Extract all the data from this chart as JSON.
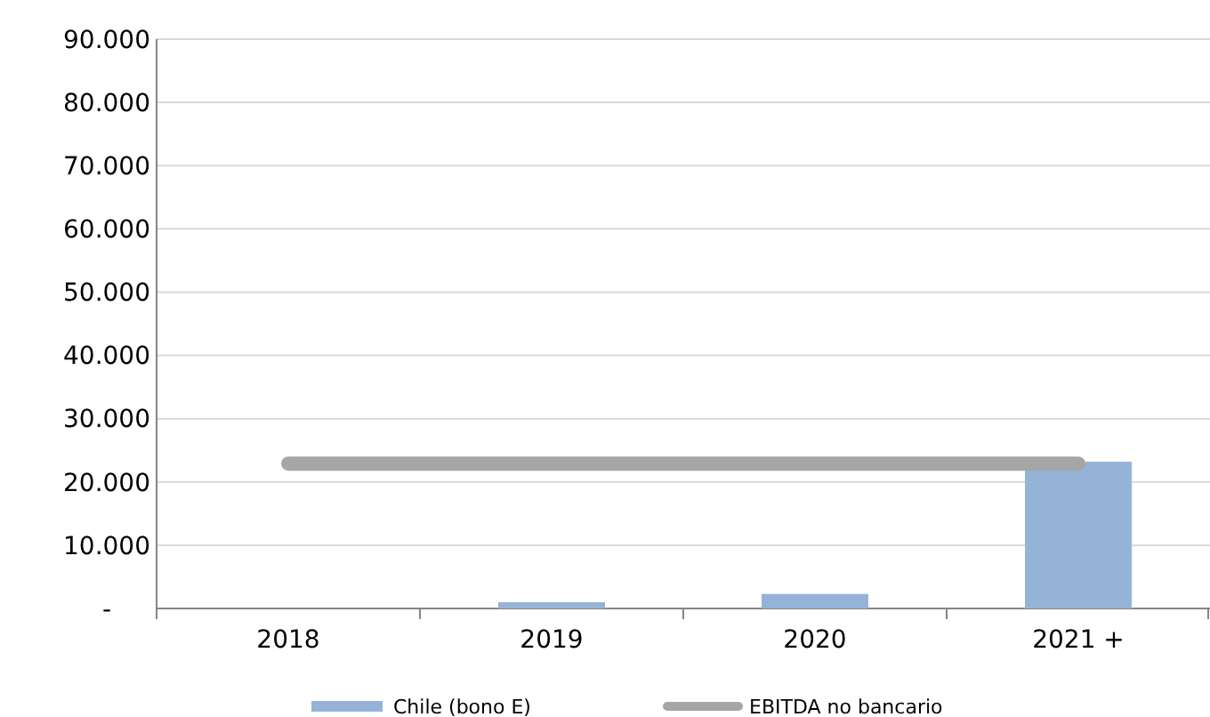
{
  "chart_data": {
    "type": "bar",
    "categories": [
      "2018",
      "2019",
      "2020",
      "2021 +"
    ],
    "series": [
      {
        "name": "Chile (bono E)",
        "color": "#95b3d7",
        "values": [
          0,
          1000,
          2300,
          23200
        ]
      },
      {
        "name": "EBITDA no bancario",
        "type": "line",
        "color": "#a6a6a6",
        "values": [
          22900,
          22900,
          22900,
          22900
        ]
      }
    ],
    "ylim": [
      0,
      90000
    ],
    "yticks": [
      {
        "value": 0,
        "label": "-"
      },
      {
        "value": 10000,
        "label": "10.000"
      },
      {
        "value": 20000,
        "label": "20.000"
      },
      {
        "value": 30000,
        "label": "30.000"
      },
      {
        "value": 40000,
        "label": "40.000"
      },
      {
        "value": 50000,
        "label": "50.000"
      },
      {
        "value": 60000,
        "label": "60.000"
      },
      {
        "value": 70000,
        "label": "70.000"
      },
      {
        "value": 80000,
        "label": "80.000"
      },
      {
        "value": 90000,
        "label": "90.000"
      }
    ],
    "grid": "y",
    "legend": "bottom"
  }
}
